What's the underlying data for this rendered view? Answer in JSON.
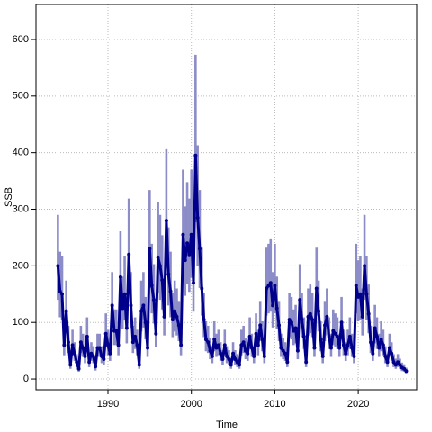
{
  "chart_data": {
    "type": "line",
    "x_label": "Time",
    "y_label": "SSB",
    "xlim": [
      1981.37,
      2027.0
    ],
    "ylim": [
      -19,
      662
    ],
    "xticks": [
      1990,
      2000,
      2010,
      2020
    ],
    "yticks": [
      0,
      100,
      200,
      300,
      400,
      500,
      600
    ],
    "grid": true,
    "color": "#00008b",
    "band_color": "#8c8cc8",
    "x": [
      1984,
      1984.25,
      1984.5,
      1984.75,
      1985,
      1985.25,
      1985.5,
      1985.75,
      1986,
      1986.25,
      1986.5,
      1986.75,
      1987,
      1987.25,
      1987.5,
      1987.75,
      1988,
      1988.25,
      1988.5,
      1988.75,
      1989,
      1989.25,
      1989.5,
      1989.75,
      1990,
      1990.25,
      1990.5,
      1990.75,
      1991,
      1991.25,
      1991.5,
      1991.75,
      1992,
      1992.25,
      1992.5,
      1992.75,
      1993,
      1993.25,
      1993.5,
      1993.75,
      1994,
      1994.25,
      1994.5,
      1994.75,
      1995,
      1995.25,
      1995.5,
      1995.75,
      1996,
      1996.25,
      1996.5,
      1996.75,
      1997,
      1997.25,
      1997.5,
      1997.75,
      1998,
      1998.25,
      1998.5,
      1998.75,
      1999,
      1999.25,
      1999.5,
      1999.75,
      2000,
      2000.25,
      2000.5,
      2000.75,
      2001,
      2001.25,
      2001.5,
      2001.75,
      2002,
      2002.25,
      2002.5,
      2002.75,
      2003,
      2003.25,
      2003.5,
      2003.75,
      2004,
      2004.25,
      2004.5,
      2004.75,
      2005,
      2005.25,
      2005.5,
      2005.75,
      2006,
      2006.25,
      2006.5,
      2006.75,
      2007,
      2007.25,
      2007.5,
      2007.75,
      2008,
      2008.25,
      2008.5,
      2008.75,
      2009,
      2009.25,
      2009.5,
      2009.75,
      2010,
      2010.25,
      2010.5,
      2010.75,
      2011,
      2011.25,
      2011.5,
      2011.75,
      2012,
      2012.25,
      2012.5,
      2012.75,
      2013,
      2013.25,
      2013.5,
      2013.75,
      2014,
      2014.25,
      2014.5,
      2014.75,
      2015,
      2015.25,
      2015.5,
      2015.75,
      2016,
      2016.25,
      2016.5,
      2016.75,
      2017,
      2017.25,
      2017.5,
      2017.75,
      2018,
      2018.25,
      2018.5,
      2018.75,
      2019,
      2019.25,
      2019.5,
      2019.75,
      2020,
      2020.25,
      2020.5,
      2020.75,
      2021,
      2021.25,
      2021.5,
      2021.75,
      2022,
      2022.25,
      2022.5,
      2022.75,
      2023,
      2023.25,
      2023.5,
      2023.75,
      2024,
      2024.25,
      2024.5,
      2024.75,
      2025,
      2025.25,
      2025.5,
      2025.75
    ],
    "values": [
      200,
      155,
      150,
      60,
      120,
      65,
      25,
      60,
      45,
      30,
      18,
      65,
      55,
      40,
      75,
      30,
      45,
      40,
      22,
      55,
      55,
      40,
      35,
      80,
      60,
      45,
      130,
      85,
      85,
      60,
      180,
      125,
      150,
      90,
      220,
      130,
      65,
      75,
      60,
      25,
      120,
      130,
      100,
      55,
      230,
      165,
      140,
      80,
      215,
      200,
      175,
      110,
      280,
      185,
      155,
      105,
      120,
      110,
      95,
      60,
      255,
      210,
      240,
      220,
      255,
      170,
      395,
      285,
      230,
      160,
      105,
      70,
      65,
      50,
      40,
      70,
      55,
      60,
      45,
      35,
      60,
      40,
      35,
      25,
      45,
      35,
      30,
      25,
      60,
      65,
      50,
      45,
      75,
      55,
      40,
      80,
      60,
      95,
      70,
      40,
      160,
      165,
      170,
      130,
      165,
      125,
      95,
      55,
      50,
      45,
      30,
      105,
      100,
      85,
      90,
      50,
      140,
      105,
      75,
      30,
      110,
      115,
      105,
      55,
      160,
      120,
      70,
      40,
      95,
      110,
      75,
      55,
      85,
      80,
      75,
      55,
      100,
      60,
      45,
      60,
      75,
      55,
      40,
      165,
      145,
      150,
      110,
      200,
      150,
      115,
      65,
      45,
      90,
      75,
      55,
      70,
      60,
      40,
      30,
      55,
      45,
      30,
      25,
      30,
      25,
      20,
      18,
      14
    ],
    "lower": [
      140,
      109,
      105,
      42,
      84,
      46,
      18,
      42,
      32,
      21,
      13,
      46,
      39,
      28,
      53,
      21,
      32,
      28,
      15,
      39,
      39,
      28,
      25,
      56,
      42,
      32,
      91,
      60,
      60,
      42,
      126,
      88,
      105,
      63,
      154,
      91,
      46,
      53,
      42,
      18,
      84,
      91,
      70,
      39,
      161,
      116,
      98,
      56,
      151,
      140,
      123,
      77,
      196,
      130,
      109,
      74,
      84,
      77,
      67,
      42,
      179,
      147,
      168,
      154,
      179,
      119,
      277,
      200,
      161,
      112,
      74,
      49,
      46,
      35,
      28,
      49,
      39,
      42,
      32,
      25,
      42,
      28,
      25,
      18,
      32,
      25,
      21,
      18,
      42,
      46,
      35,
      32,
      53,
      39,
      28,
      56,
      42,
      67,
      49,
      28,
      112,
      116,
      119,
      91,
      116,
      88,
      67,
      39,
      35,
      32,
      21,
      74,
      70,
      60,
      63,
      35,
      98,
      74,
      53,
      21,
      77,
      81,
      74,
      39,
      112,
      84,
      49,
      28,
      67,
      77,
      53,
      39,
      60,
      56,
      53,
      39,
      70,
      42,
      32,
      42,
      53,
      39,
      28,
      116,
      102,
      105,
      77,
      140,
      105,
      81,
      46,
      32,
      63,
      53,
      39,
      49,
      42,
      28,
      21,
      39,
      32,
      21,
      18,
      21,
      18,
      14,
      13,
      10
    ],
    "upper": [
      290,
      225,
      218,
      87,
      174,
      94,
      36,
      87,
      65,
      44,
      26,
      94,
      80,
      58,
      109,
      44,
      65,
      58,
      32,
      80,
      80,
      58,
      51,
      116,
      87,
      65,
      189,
      123,
      123,
      87,
      261,
      181,
      218,
      131,
      319,
      189,
      94,
      109,
      87,
      36,
      174,
      189,
      145,
      80,
      334,
      239,
      203,
      116,
      312,
      290,
      254,
      160,
      406,
      268,
      225,
      152,
      174,
      160,
      138,
      87,
      370,
      305,
      348,
      319,
      370,
      247,
      573,
      413,
      334,
      232,
      152,
      102,
      94,
      73,
      58,
      102,
      80,
      87,
      65,
      51,
      87,
      58,
      51,
      36,
      65,
      51,
      44,
      36,
      87,
      94,
      73,
      65,
      109,
      80,
      58,
      116,
      87,
      138,
      102,
      58,
      232,
      239,
      247,
      189,
      239,
      181,
      138,
      80,
      73,
      65,
      44,
      152,
      145,
      123,
      131,
      73,
      203,
      152,
      109,
      44,
      160,
      167,
      152,
      80,
      232,
      174,
      102,
      58,
      138,
      160,
      109,
      80,
      123,
      116,
      109,
      80,
      145,
      87,
      65,
      87,
      109,
      80,
      58,
      239,
      210,
      218,
      160,
      290,
      218,
      167,
      94,
      65,
      131,
      109,
      80,
      102,
      87,
      58,
      44,
      80,
      65,
      44,
      36,
      44,
      36,
      29,
      26,
      20
    ]
  }
}
